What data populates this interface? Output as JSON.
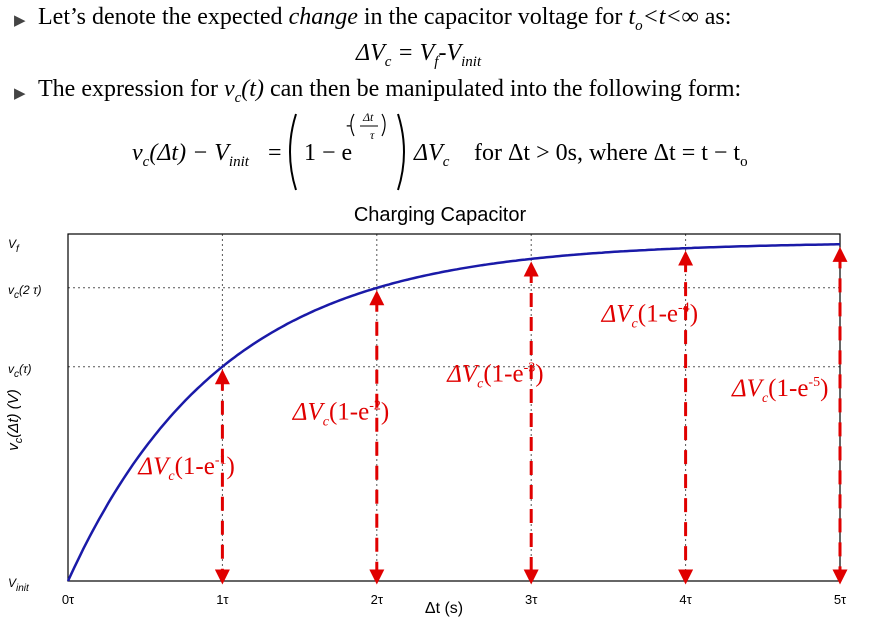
{
  "text": {
    "line1_pre": "Let’s denote the expected ",
    "line1_change": "change",
    "line1_post": " in the capacitor voltage for ",
    "line1_t": "t",
    "line1_t_sub": "o",
    "line1_ineq": "<t<∞",
    "line1_tail": "  as:",
    "eq1": "ΔV",
    "eq1_sub": "c",
    "eq1_rhs": " = V",
    "eq1_f": "f",
    "eq1_minus": "-V",
    "eq1_init": "init",
    "line2_pre": "The expression for ",
    "line2_v": "v",
    "line2_vsub": "c",
    "line2_t": "(t)",
    "line2_post": " can then be manipulated into the following form:",
    "eq2_left": "v",
    "eq2_left_sub": "c",
    "eq2_left2": "(Δt) − V",
    "eq2_left_init": "init",
    "eq2_eq": "=",
    "eq2_one": "1 − e",
    "eq2_exp_num": "Δt",
    "eq2_exp_den": "τ",
    "eq2_dv": "ΔV",
    "eq2_dv_sub": "c",
    "eq2_cond": "for Δt > 0s,   where  Δt = t − t",
    "eq2_cond_sub": "o"
  },
  "chart_data": {
    "type": "line",
    "title": "Charging Capacitor",
    "xlabel": "Δt (s)",
    "ylabel": "v_c(Δt) (V)",
    "xlim": [
      0,
      5
    ],
    "ylim": [
      0,
      1
    ],
    "x_tick_labels": [
      "0τ",
      "1τ",
      "2τ",
      "3τ",
      "4τ",
      "5τ"
    ],
    "y_tick_labels": [
      {
        "label": "V",
        "sub": "init",
        "value": 0
      },
      {
        "label": "v",
        "sub": "c",
        "suffix": "(τ)",
        "value": 0.632
      },
      {
        "label": "v",
        "sub": "c",
        "suffix": "(2 τ)",
        "value": 0.865
      },
      {
        "label": "V",
        "sub": "f",
        "value": 1
      }
    ],
    "curve": {
      "formula": "1-exp(-t)",
      "color": "#1a1aa8"
    },
    "annotations": [
      {
        "x": 1,
        "pre": "ΔV",
        "sub": "c",
        "post": "(1-e",
        "sup": "-1",
        "close": ")",
        "value": 0.632
      },
      {
        "x": 2,
        "pre": "ΔV",
        "sub": "c",
        "post": "(1-e",
        "sup": "-2",
        "close": ")",
        "value": 0.865
      },
      {
        "x": 3,
        "pre": "ΔV",
        "sub": "c",
        "post": "(1-e",
        "sup": "-3",
        "close": ")",
        "value": 0.95
      },
      {
        "x": 4,
        "pre": "ΔV",
        "sub": "c",
        "post": "(1-e",
        "sup": "-4",
        "close": ")",
        "value": 0.982
      },
      {
        "x": 5,
        "pre": "ΔV",
        "sub": "c",
        "post": "(1-e",
        "sup": "-5",
        "close": ")",
        "value": 0.993
      }
    ],
    "grid": "dotted at 1τ..4τ and at v_c(τ), v_c(2τ)",
    "arrow_color": "#e00000"
  }
}
